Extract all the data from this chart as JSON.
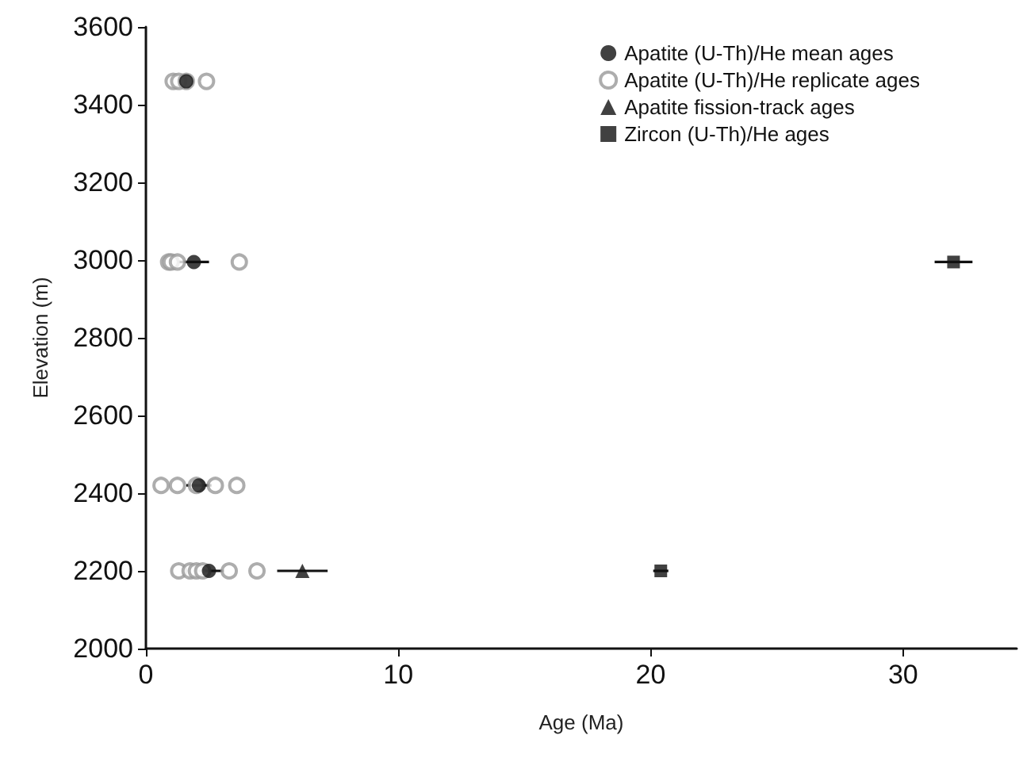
{
  "chart_data": {
    "type": "scatter",
    "xlabel": "Age (Ma)",
    "ylabel": "Elevation (m)",
    "xlim": [
      0,
      34.5
    ],
    "xticks": [
      0,
      10,
      20,
      30
    ],
    "ylim": [
      2000,
      3600
    ],
    "yticks": [
      2000,
      2200,
      2400,
      2600,
      2800,
      3000,
      3200,
      3400,
      3600
    ],
    "grid": false,
    "legend": "top right",
    "series": [
      {
        "name": "Apatite (U-Th)/He mean ages",
        "color": "#111111",
        "marker": "circle",
        "x": [
          1.6,
          1.9,
          2.1,
          2.5
        ],
        "values": [
          3460,
          2995,
          2420,
          2200
        ],
        "xerrors": [
          null,
          0.6,
          0.5,
          0.6
        ]
      },
      {
        "name": "Apatite (U-Th)/He replicate ages",
        "color": "#999999",
        "marker": "circle",
        "x": [
          1.08,
          1.3,
          1.6,
          2.4,
          0.9,
          1.0,
          1.25,
          3.7,
          0.6,
          1.25,
          2.0,
          2.75,
          3.6,
          1.3,
          1.75,
          2.0,
          2.25,
          3.3,
          4.4
        ],
        "values": [
          3460,
          3460,
          3460,
          3460,
          2995,
          2995,
          2995,
          2995,
          2420,
          2420,
          2420,
          2420,
          2420,
          2200,
          2200,
          2200,
          2200,
          2200,
          2200
        ]
      },
      {
        "name": "Apatite fission-track ages",
        "color": "#111111",
        "marker": "triangle",
        "x": [
          6.2
        ],
        "values": [
          2200
        ],
        "xerrors": [
          1.0
        ]
      },
      {
        "name": "Zircon (U-Th)/He ages",
        "color": "#111111",
        "marker": "square",
        "x": [
          20.4,
          32.0
        ],
        "values": [
          2200,
          2995
        ],
        "xerrors": [
          0.3,
          0.75
        ]
      }
    ]
  }
}
